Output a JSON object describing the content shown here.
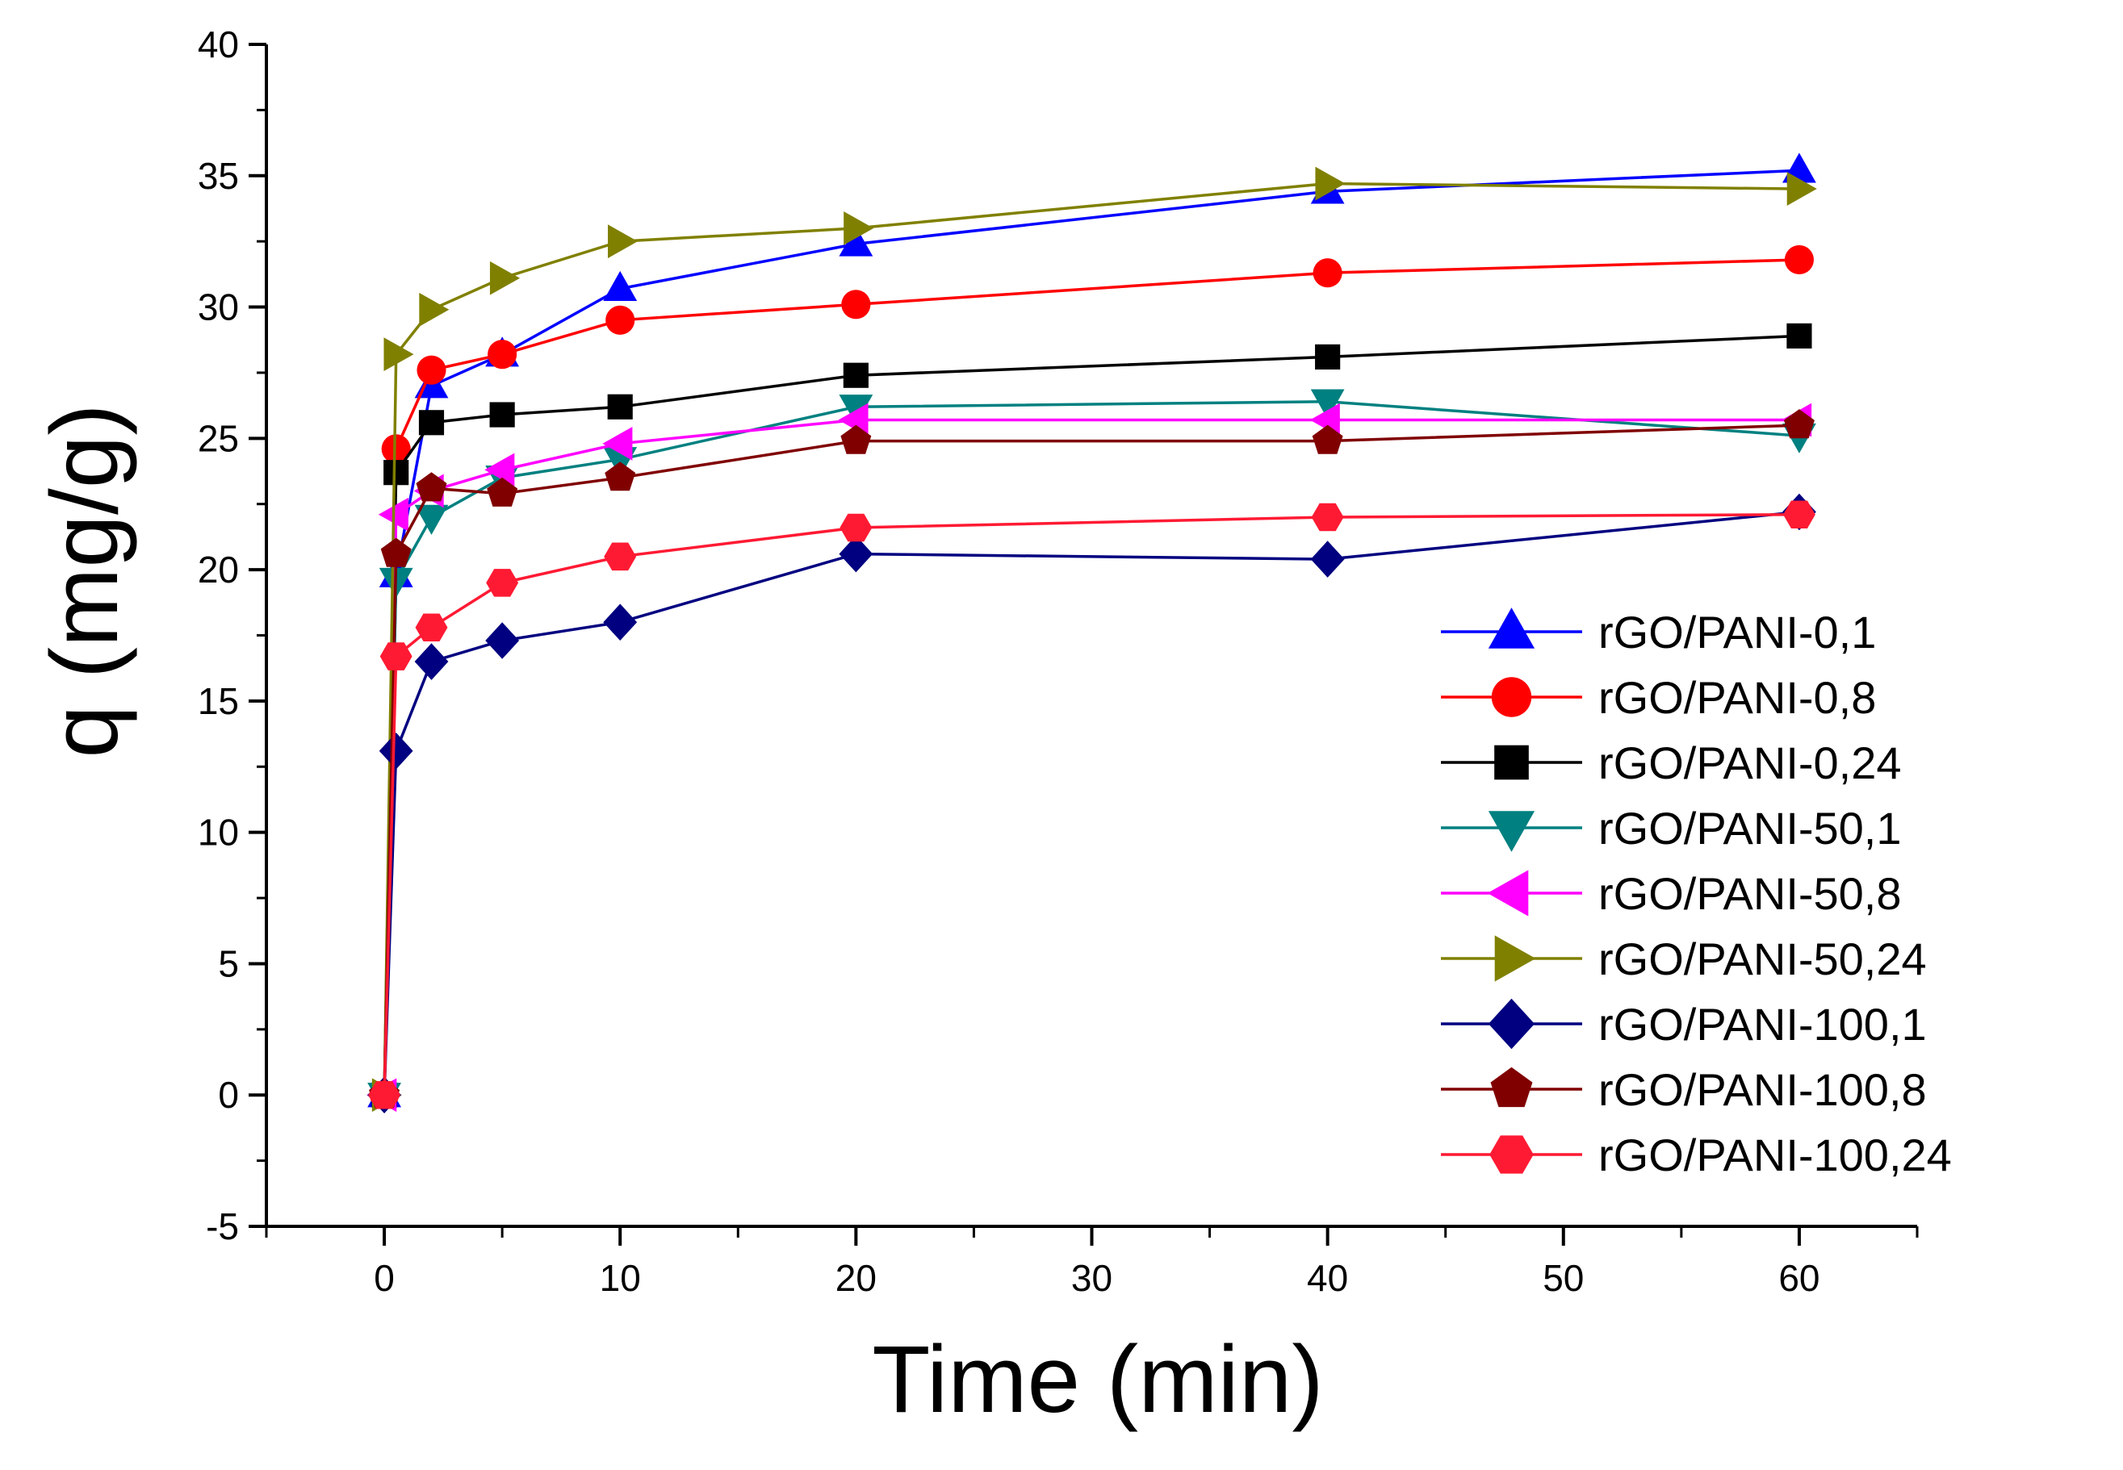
{
  "chart_data": {
    "type": "line",
    "title": "",
    "xlabel": "Time (min)",
    "ylabel": "q (mg/g)",
    "xlim": [
      -5,
      65
    ],
    "ylim": [
      -5,
      40
    ],
    "x_major_ticks": [
      0,
      10,
      20,
      30,
      40,
      50,
      60
    ],
    "x_tick_labels": [
      "0",
      "10",
      "20",
      "30",
      "40",
      "50",
      "60"
    ],
    "y_major_ticks": [
      -5,
      0,
      5,
      10,
      15,
      20,
      25,
      30,
      35,
      40
    ],
    "y_tick_labels": [
      "-5",
      "0",
      "5",
      "10",
      "15",
      "20",
      "25",
      "30",
      "35",
      "40"
    ],
    "legend_position": "right",
    "grid": false,
    "x": [
      0,
      0.5,
      2,
      5,
      10,
      20,
      40,
      60
    ],
    "series": [
      {
        "name": "rGO/PANI-0,1",
        "color": "#0000ff",
        "marker": "triangle-up",
        "values": [
          0,
          19.8,
          27.0,
          28.2,
          30.7,
          32.4,
          34.4,
          35.2
        ]
      },
      {
        "name": "rGO/PANI-0,8",
        "color": "#ff0000",
        "marker": "circle",
        "values": [
          0,
          24.6,
          27.6,
          28.2,
          29.5,
          30.1,
          31.3,
          31.8
        ]
      },
      {
        "name": "rGO/PANI-0,24",
        "color": "#000000",
        "marker": "square",
        "values": [
          0,
          23.7,
          25.6,
          25.9,
          26.2,
          27.4,
          28.1,
          28.9
        ]
      },
      {
        "name": "rGO/PANI-50,1",
        "color": "#008080",
        "marker": "triangle-down",
        "values": [
          0,
          19.6,
          22.0,
          23.5,
          24.2,
          26.2,
          26.4,
          25.1
        ]
      },
      {
        "name": "rGO/PANI-50,8",
        "color": "#ff00ff",
        "marker": "triangle-left",
        "values": [
          0,
          22.1,
          23.0,
          23.8,
          24.8,
          25.7,
          25.7,
          25.7
        ]
      },
      {
        "name": "rGO/PANI-50,24",
        "color": "#808000",
        "marker": "triangle-right",
        "values": [
          0,
          28.2,
          29.9,
          31.1,
          32.5,
          33.0,
          34.7,
          34.5
        ]
      },
      {
        "name": "rGO/PANI-100,1",
        "color": "#000080",
        "marker": "diamond",
        "values": [
          0,
          13.1,
          16.5,
          17.3,
          18.0,
          20.6,
          20.4,
          22.2
        ]
      },
      {
        "name": "rGO/PANI-100,8",
        "color": "#800000",
        "marker": "pentagon",
        "values": [
          0,
          20.6,
          23.1,
          22.9,
          23.5,
          24.9,
          24.9,
          25.5
        ]
      },
      {
        "name": "rGO/PANI-100,24",
        "color": "#ff1a33",
        "marker": "hexagon",
        "values": [
          0,
          16.7,
          17.8,
          19.5,
          20.5,
          21.6,
          22.0,
          22.1
        ]
      }
    ]
  }
}
